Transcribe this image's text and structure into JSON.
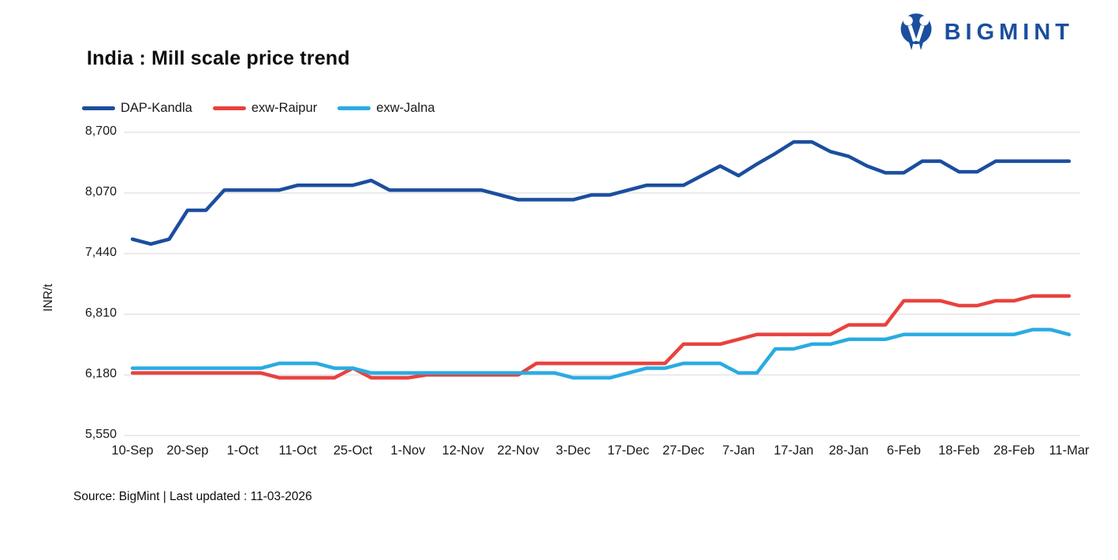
{
  "header": {
    "title": "India : Mill scale price trend",
    "logo_text": "BIGMINT"
  },
  "colors": {
    "brand": "#1b4e9e",
    "gridline": "#ebebeb",
    "axis_text": "#1a1a1a"
  },
  "chart_data": {
    "type": "line",
    "title": "India : Mill scale price trend",
    "xlabel": "",
    "ylabel": "INR/t",
    "ylim": [
      5550,
      8700
    ],
    "y_ticks": [
      8700,
      8070,
      7440,
      6810,
      6180,
      5550
    ],
    "grid": "horizontal",
    "legend_position": "top-left",
    "x_tick_labels": [
      "10-Sep",
      "20-Sep",
      "1-Oct",
      "11-Oct",
      "25-Oct",
      "1-Nov",
      "12-Nov",
      "22-Nov",
      "3-Dec",
      "17-Dec",
      "27-Dec",
      "7-Jan",
      "17-Jan",
      "28-Jan",
      "6-Feb",
      "18-Feb",
      "28-Feb",
      "11-Mar"
    ],
    "points_per_label": 3,
    "series": [
      {
        "name": "DAP-Kandla",
        "color": "#1b4e9e",
        "values": [
          7590,
          7540,
          7590,
          7890,
          7890,
          8100,
          8100,
          8100,
          8100,
          8150,
          8150,
          8150,
          8150,
          8200,
          8100,
          8100,
          8100,
          8100,
          8100,
          8100,
          8050,
          8000,
          8000,
          8000,
          8000,
          8050,
          8050,
          8100,
          8150,
          8150,
          8150,
          8250,
          8350,
          8250,
          8370,
          8480,
          8600,
          8600,
          8500,
          8450,
          8350,
          8280,
          8280,
          8400,
          8400,
          8290,
          8290,
          8400,
          8400,
          8400,
          8400,
          8400
        ]
      },
      {
        "name": "exw-Raipur",
        "color": "#e8423e",
        "values": [
          6200,
          6200,
          6200,
          6200,
          6200,
          6200,
          6200,
          6200,
          6150,
          6150,
          6150,
          6150,
          6250,
          6150,
          6150,
          6150,
          6180,
          6180,
          6180,
          6180,
          6180,
          6180,
          6300,
          6300,
          6300,
          6300,
          6300,
          6300,
          6300,
          6300,
          6500,
          6500,
          6500,
          6550,
          6600,
          6600,
          6600,
          6600,
          6600,
          6700,
          6700,
          6700,
          6950,
          6950,
          6950,
          6900,
          6900,
          6950,
          6950,
          7000,
          7000,
          7000
        ]
      },
      {
        "name": "exw-Jalna",
        "color": "#29abe2",
        "values": [
          6250,
          6250,
          6250,
          6250,
          6250,
          6250,
          6250,
          6250,
          6300,
          6300,
          6300,
          6250,
          6250,
          6200,
          6200,
          6200,
          6200,
          6200,
          6200,
          6200,
          6200,
          6200,
          6200,
          6200,
          6150,
          6150,
          6150,
          6200,
          6250,
          6250,
          6300,
          6300,
          6300,
          6200,
          6200,
          6450,
          6450,
          6500,
          6500,
          6550,
          6550,
          6550,
          6600,
          6600,
          6600,
          6600,
          6600,
          6600,
          6600,
          6650,
          6650,
          6600
        ]
      }
    ]
  },
  "footer": {
    "source_text": "Source: BigMint | Last updated : 11-03-2026"
  }
}
